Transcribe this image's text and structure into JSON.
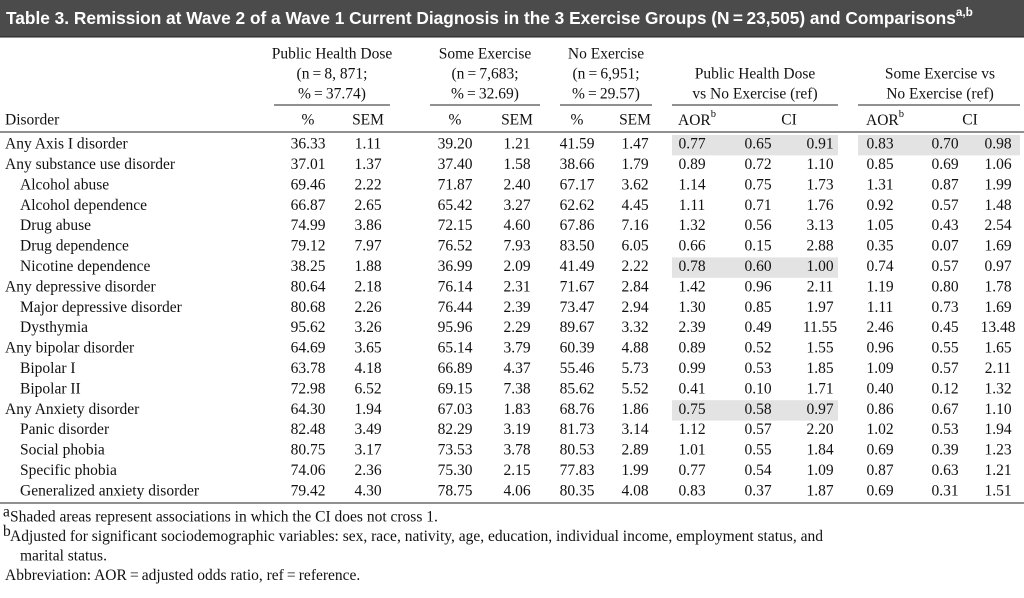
{
  "title": {
    "text": "Table 3. Remission at Wave 2 of a Wave 1 Current Diagnosis in the 3 Exercise Groups (N = 23,505) and Comparisons",
    "sup": "a,b"
  },
  "table": {
    "groups": [
      {
        "lines": [
          "Public Health Dose",
          "(n = 8, 871;",
          "% = 37.74)"
        ]
      },
      {
        "lines": [
          "Some Exercise",
          "(n = 7,683;",
          "% = 32.69)"
        ]
      },
      {
        "lines": [
          "No Exercise",
          "(n = 6,951;",
          "% = 29.57)"
        ]
      },
      {
        "lines": [
          "Public Health Dose",
          "vs No Exercise (ref)"
        ]
      },
      {
        "lines": [
          "Some Exercise vs",
          "No Exercise (ref)"
        ]
      }
    ],
    "subheader": {
      "label": "Disorder",
      "cells": [
        "%",
        "SEM",
        "%",
        "SEM",
        "%",
        "SEM"
      ],
      "comparisons": [
        {
          "aor": "AOR",
          "sup": "b",
          "ci": "CI"
        },
        {
          "aor": "AOR",
          "sup": "b",
          "ci": "CI"
        }
      ]
    },
    "rows": [
      {
        "label": "Any Axis I disorder",
        "indent": false,
        "cells": [
          "36.33",
          "1.11",
          "39.20",
          "1.21",
          "41.59",
          "1.47",
          "0.77",
          "0.65",
          "0.91",
          "0.83",
          "0.70",
          "0.98"
        ],
        "shaded": [
          true,
          true
        ]
      },
      {
        "label": "Any substance use disorder",
        "indent": false,
        "cells": [
          "37.01",
          "1.37",
          "37.40",
          "1.58",
          "38.66",
          "1.79",
          "0.89",
          "0.72",
          "1.10",
          "0.85",
          "0.69",
          "1.06"
        ],
        "shaded": [
          false,
          false
        ]
      },
      {
        "label": "Alcohol abuse",
        "indent": true,
        "cells": [
          "69.46",
          "2.22",
          "71.87",
          "2.40",
          "67.17",
          "3.62",
          "1.14",
          "0.75",
          "1.73",
          "1.31",
          "0.87",
          "1.99"
        ],
        "shaded": [
          false,
          false
        ]
      },
      {
        "label": "Alcohol dependence",
        "indent": true,
        "cells": [
          "66.87",
          "2.65",
          "65.42",
          "3.27",
          "62.62",
          "4.45",
          "1.11",
          "0.71",
          "1.76",
          "0.92",
          "0.57",
          "1.48"
        ],
        "shaded": [
          false,
          false
        ]
      },
      {
        "label": "Drug abuse",
        "indent": true,
        "cells": [
          "74.99",
          "3.86",
          "72.15",
          "4.60",
          "67.86",
          "7.16",
          "1.32",
          "0.56",
          "3.13",
          "1.05",
          "0.43",
          "2.54"
        ],
        "shaded": [
          false,
          false
        ]
      },
      {
        "label": "Drug dependence",
        "indent": true,
        "cells": [
          "79.12",
          "7.97",
          "76.52",
          "7.93",
          "83.50",
          "6.05",
          "0.66",
          "0.15",
          "2.88",
          "0.35",
          "0.07",
          "1.69"
        ],
        "shaded": [
          false,
          false
        ]
      },
      {
        "label": "Nicotine dependence",
        "indent": true,
        "cells": [
          "38.25",
          "1.88",
          "36.99",
          "2.09",
          "41.49",
          "2.22",
          "0.78",
          "0.60",
          "1.00",
          "0.74",
          "0.57",
          "0.97"
        ],
        "shaded": [
          true,
          false
        ]
      },
      {
        "label": "Any depressive disorder",
        "indent": false,
        "cells": [
          "80.64",
          "2.18",
          "76.14",
          "2.31",
          "71.67",
          "2.84",
          "1.42",
          "0.96",
          "2.11",
          "1.19",
          "0.80",
          "1.78"
        ],
        "shaded": [
          false,
          false
        ]
      },
      {
        "label": "Major depressive disorder",
        "indent": true,
        "cells": [
          "80.68",
          "2.26",
          "76.44",
          "2.39",
          "73.47",
          "2.94",
          "1.30",
          "0.85",
          "1.97",
          "1.11",
          "0.73",
          "1.69"
        ],
        "shaded": [
          false,
          false
        ]
      },
      {
        "label": "Dysthymia",
        "indent": true,
        "cells": [
          "95.62",
          "3.26",
          "95.96",
          "2.29",
          "89.67",
          "3.32",
          "2.39",
          "0.49",
          "11.55",
          "2.46",
          "0.45",
          "13.48"
        ],
        "shaded": [
          false,
          false
        ]
      },
      {
        "label": "Any bipolar disorder",
        "indent": false,
        "cells": [
          "64.69",
          "3.65",
          "65.14",
          "3.79",
          "60.39",
          "4.88",
          "0.89",
          "0.52",
          "1.55",
          "0.96",
          "0.55",
          "1.65"
        ],
        "shaded": [
          false,
          false
        ]
      },
      {
        "label": "Bipolar I",
        "indent": true,
        "cells": [
          "63.78",
          "4.18",
          "66.89",
          "4.37",
          "55.46",
          "5.73",
          "0.99",
          "0.53",
          "1.85",
          "1.09",
          "0.57",
          "2.11"
        ],
        "shaded": [
          false,
          false
        ]
      },
      {
        "label": "Bipolar II",
        "indent": true,
        "cells": [
          "72.98",
          "6.52",
          "69.15",
          "7.38",
          "85.62",
          "5.52",
          "0.41",
          "0.10",
          "1.71",
          "0.40",
          "0.12",
          "1.32"
        ],
        "shaded": [
          false,
          false
        ]
      },
      {
        "label": "Any Anxiety disorder",
        "indent": false,
        "cells": [
          "64.30",
          "1.94",
          "67.03",
          "1.83",
          "68.76",
          "1.86",
          "0.75",
          "0.58",
          "0.97",
          "0.86",
          "0.67",
          "1.10"
        ],
        "shaded": [
          true,
          false
        ]
      },
      {
        "label": "Panic disorder",
        "indent": true,
        "cells": [
          "82.48",
          "3.49",
          "82.29",
          "3.19",
          "81.73",
          "3.14",
          "1.12",
          "0.57",
          "2.20",
          "1.02",
          "0.53",
          "1.94"
        ],
        "shaded": [
          false,
          false
        ]
      },
      {
        "label": "Social phobia",
        "indent": true,
        "cells": [
          "80.75",
          "3.17",
          "73.53",
          "3.78",
          "80.53",
          "2.89",
          "1.01",
          "0.55",
          "1.84",
          "0.69",
          "0.39",
          "1.23"
        ],
        "shaded": [
          false,
          false
        ]
      },
      {
        "label": "Specific phobia",
        "indent": true,
        "cells": [
          "74.06",
          "2.36",
          "75.30",
          "2.15",
          "77.83",
          "1.99",
          "0.77",
          "0.54",
          "1.09",
          "0.87",
          "0.63",
          "1.21"
        ],
        "shaded": [
          false,
          false
        ]
      },
      {
        "label": "Generalized anxiety disorder",
        "indent": true,
        "cells": [
          "79.42",
          "4.30",
          "78.75",
          "4.06",
          "80.35",
          "4.08",
          "0.83",
          "0.37",
          "1.87",
          "0.69",
          "0.31",
          "1.51"
        ],
        "shaded": [
          false,
          false
        ]
      }
    ]
  },
  "footnotes": [
    {
      "mark": "a",
      "lines": [
        "Shaded areas represent associations in which the CI does not cross 1."
      ]
    },
    {
      "mark": "b",
      "lines": [
        "Adjusted for significant sociodemographic variables: sex, race, nativity, age, education, individual income, employment status, and",
        "marital status."
      ]
    },
    {
      "lines": [
        "Abbreviation: AOR = adjusted odds ratio, ref = reference."
      ]
    }
  ]
}
